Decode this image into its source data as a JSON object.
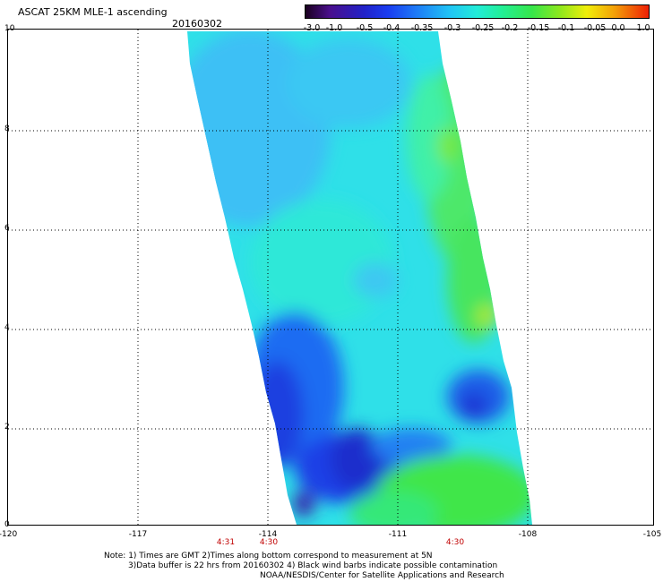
{
  "header": {
    "title": "ASCAT 25KM MLE-1 ascending",
    "date": "20160302"
  },
  "colorbar": {
    "labels": [
      "-3.0",
      "-1.0",
      "-0.5",
      "-0.4",
      "-0.35",
      "-0.3",
      "-0.25",
      "-0.2",
      "-0.15",
      "-0.1",
      "-0.05",
      "0.0",
      "1.0"
    ],
    "colors": [
      "#2a0033",
      "#5a1a9e",
      "#1b1bd6",
      "#1a4ef0",
      "#1e8cf7",
      "#22d0f5",
      "#1fe8c9",
      "#2af08c",
      "#3fe63a",
      "#9ae81c",
      "#f1ed08",
      "#f29a07",
      "#ef2a05"
    ]
  },
  "map": {
    "y_axis_labels": [
      "10",
      "8",
      "6",
      "4",
      "2",
      "0"
    ],
    "x_axis_labels": [
      "-120",
      "-117",
      "-114",
      "-111",
      "-108",
      "-105"
    ],
    "time_labels": [
      "4:31",
      "4:30",
      "4:30"
    ]
  },
  "notes": {
    "line1": "Note: 1) Times are GMT 2)Times along bottom correspond to measurement at 5N",
    "line2": "3)Data buffer is 22 hrs from 20160302 4) Black wind barbs indicate possible contamination",
    "line3": "NOAA/NESDIS/Center for Satellite Applications and Research"
  }
}
